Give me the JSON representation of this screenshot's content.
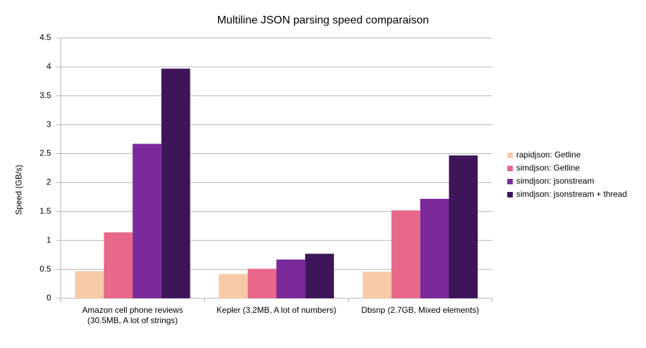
{
  "chart_data": {
    "type": "bar",
    "title": "Multiline JSON parsing speed comparaison",
    "y_label": "Speed (GB/s)",
    "categories": [
      "Amazon cell phone reviews (30.5MB, A lot of strings)",
      "Kepler (3.2MB, A lot of numbers)",
      "Dbsnp (2.7GB, Mixed elements)"
    ],
    "series": [
      {
        "name": "rapidjson: Getline",
        "color": "#f8cba8",
        "values": [
          0.47,
          0.42,
          0.46
        ]
      },
      {
        "name": "simdjson: Getline",
        "color": "#e8688a",
        "values": [
          1.14,
          0.51,
          1.52
        ]
      },
      {
        "name": "simdjson: jsonstream",
        "color": "#7b2a9a",
        "values": [
          2.67,
          0.67,
          1.72
        ]
      },
      {
        "name": "simdjson: jsonstream + thread",
        "color": "#3d1558",
        "values": [
          3.97,
          0.77,
          2.47
        ]
      }
    ],
    "ylim": [
      0,
      4.5
    ],
    "yticks": [
      0,
      0.5,
      1,
      1.5,
      2,
      2.5,
      3,
      3.5,
      4,
      4.5
    ],
    "grid": true,
    "legend": "right"
  }
}
